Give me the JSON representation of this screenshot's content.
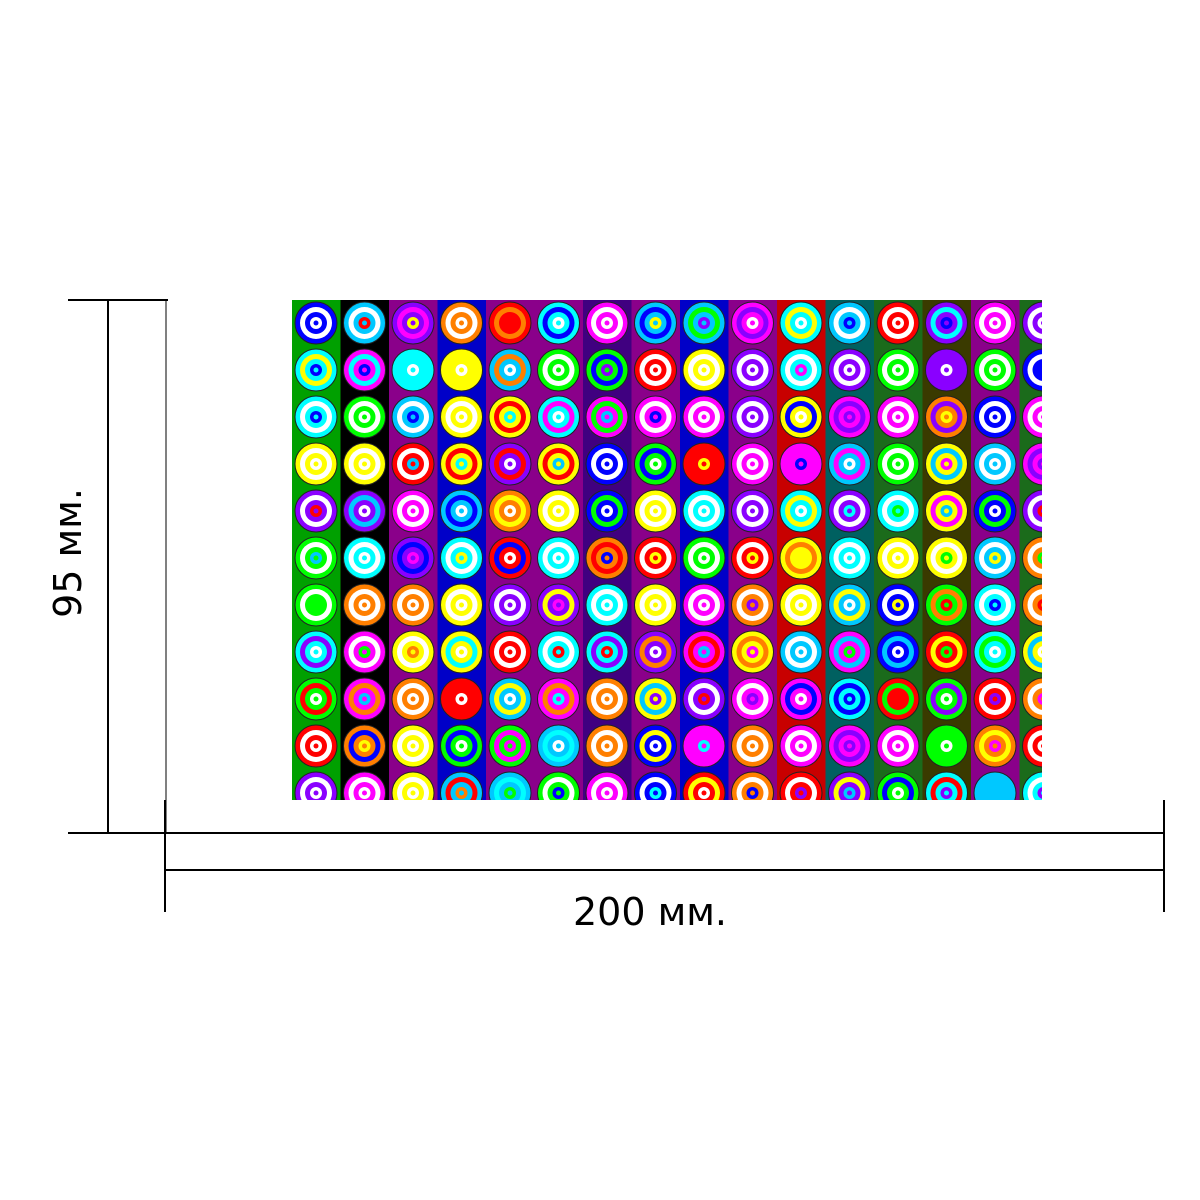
{
  "dimensions": {
    "width_label": "200 мм.",
    "height_label": "95 мм."
  },
  "pattern": {
    "description_icon": "concentric-circles-pattern",
    "palette": [
      "#ffff00",
      "#00ff00",
      "#ff00ff",
      "#00ffff",
      "#ff0000",
      "#0000ff",
      "#8a00ff",
      "#ff7f00",
      "#00c8ff"
    ],
    "backgrounds": [
      "#000000",
      "#1b6b1b",
      "#0000c8",
      "#8a008a",
      "#00a000",
      "#c80000",
      "#006060",
      "#3a3a00",
      "#400080"
    ]
  }
}
